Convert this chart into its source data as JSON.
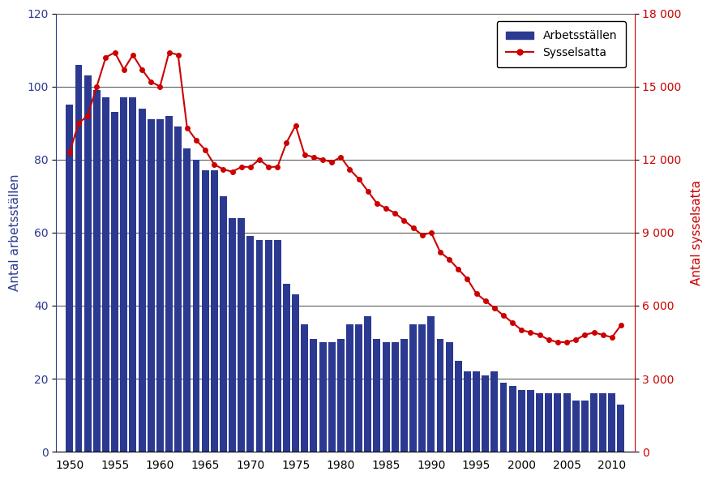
{
  "years_bars": [
    1950,
    1951,
    1952,
    1953,
    1954,
    1955,
    1956,
    1957,
    1958,
    1959,
    1960,
    1961,
    1962,
    1963,
    1964,
    1965,
    1966,
    1967,
    1968,
    1969,
    1970,
    1971,
    1972,
    1973,
    1974,
    1975,
    1976,
    1977,
    1978,
    1979,
    1980,
    1981,
    1982,
    1983,
    1984,
    1985,
    1986,
    1987,
    1988,
    1989,
    1990,
    1991,
    1992,
    1993,
    1994,
    1995,
    1996,
    1997,
    1998,
    1999,
    2000,
    2001,
    2002,
    2003,
    2004,
    2005,
    2006,
    2007,
    2008,
    2009,
    2010,
    2011
  ],
  "bar_values": [
    95,
    106,
    103,
    99,
    97,
    93,
    97,
    97,
    94,
    91,
    91,
    92,
    89,
    83,
    80,
    77,
    77,
    70,
    64,
    64,
    59,
    58,
    58,
    58,
    46,
    43,
    35,
    31,
    30,
    30,
    31,
    35,
    35,
    37,
    31,
    30,
    30,
    31,
    35,
    35,
    37,
    31,
    30,
    25,
    22,
    22,
    21,
    22,
    19,
    18,
    17,
    17,
    16,
    16,
    16,
    16,
    14,
    14,
    16,
    16,
    16,
    13
  ],
  "years_line": [
    1950,
    1951,
    1952,
    1953,
    1954,
    1955,
    1956,
    1957,
    1958,
    1959,
    1960,
    1961,
    1962,
    1963,
    1964,
    1965,
    1966,
    1967,
    1968,
    1969,
    1970,
    1971,
    1972,
    1973,
    1974,
    1975,
    1976,
    1977,
    1978,
    1979,
    1980,
    1981,
    1982,
    1983,
    1984,
    1985,
    1986,
    1987,
    1988,
    1989,
    1990,
    1991,
    1992,
    1993,
    1994,
    1995,
    1996,
    1997,
    1998,
    1999,
    2000,
    2001,
    2002,
    2003,
    2004,
    2005,
    2006,
    2007,
    2008,
    2009,
    2010,
    2011
  ],
  "line_values": [
    12300,
    13500,
    13800,
    15000,
    16200,
    16400,
    15700,
    16300,
    15700,
    15200,
    15000,
    16400,
    16300,
    13300,
    12800,
    12400,
    11800,
    11600,
    11500,
    11700,
    11700,
    12000,
    11700,
    11700,
    12700,
    13400,
    12200,
    12100,
    12000,
    11900,
    12100,
    11600,
    11200,
    10700,
    10200,
    10000,
    9800,
    9500,
    9200,
    8900,
    9000,
    8200,
    7900,
    7500,
    7100,
    6500,
    6200,
    5900,
    5600,
    5300,
    5000,
    4900,
    4800,
    4600,
    4500,
    4500,
    4600,
    4800,
    4900,
    4800,
    4700,
    5200
  ],
  "bar_color": "#2B3990",
  "line_color": "#CC0000",
  "left_ylabel": "Antal arbetsställen",
  "right_ylabel": "Antal sysselsatta",
  "left_ylim": [
    0,
    120
  ],
  "right_ylim": [
    0,
    18000
  ],
  "left_yticks": [
    0,
    20,
    40,
    60,
    80,
    100,
    120
  ],
  "right_yticks": [
    0,
    3000,
    6000,
    9000,
    12000,
    15000,
    18000
  ],
  "right_yticklabels": [
    "0",
    "3 000",
    "6 000",
    "9 000",
    "12 000",
    "15 000",
    "18 000"
  ],
  "xticks": [
    1950,
    1955,
    1960,
    1965,
    1970,
    1975,
    1980,
    1985,
    1990,
    1995,
    2000,
    2005,
    2010
  ],
  "legend_bar_label": "Arbetsställen",
  "legend_line_label": "Sysselsatta",
  "background_color": "#FFFFFF",
  "grid_color": "#000000",
  "left_label_color": "#2B3990",
  "right_label_color": "#CC0000",
  "xlim": [
    1948.5,
    2012.5
  ]
}
